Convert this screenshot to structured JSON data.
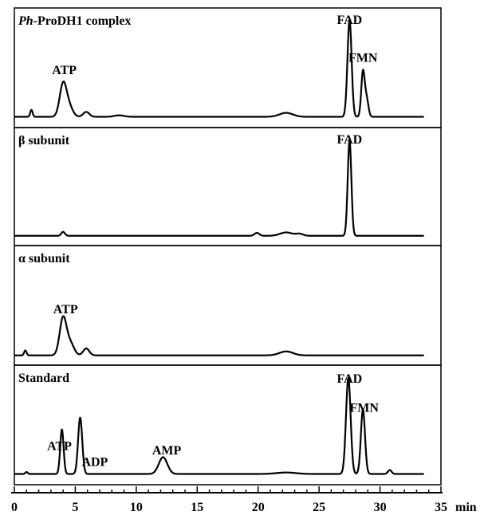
{
  "chart_data": {
    "type": "line",
    "x_unit": "min",
    "xlim": [
      0,
      35
    ],
    "x_ticks": [
      "0",
      "5",
      "10",
      "15",
      "20",
      "25",
      "30",
      "35"
    ],
    "x_axis_label": "min",
    "grid": false,
    "panels": [
      {
        "title_italic": "Ph",
        "title_rest": "-ProDH1 complex",
        "peak_labels": [
          {
            "text": "ATP",
            "x": 4.1
          },
          {
            "text": "FAD",
            "x": 27.5
          },
          {
            "text": "FMN",
            "x": 28.6
          }
        ],
        "baseline": 0.02,
        "peaks": [
          {
            "x": 1.4,
            "h": 0.07,
            "w": 0.1
          },
          {
            "x": 4.0,
            "h": 0.33,
            "w": 0.28
          },
          {
            "x": 4.5,
            "h": 0.1,
            "w": 0.3
          },
          {
            "x": 5.9,
            "h": 0.05,
            "w": 0.25
          },
          {
            "x": 8.6,
            "h": 0.015,
            "w": 0.4
          },
          {
            "x": 22.3,
            "h": 0.04,
            "w": 0.55
          },
          {
            "x": 27.5,
            "h": 0.98,
            "w": 0.17
          },
          {
            "x": 28.6,
            "h": 0.45,
            "w": 0.14
          },
          {
            "x": 28.9,
            "h": 0.18,
            "w": 0.15
          }
        ]
      },
      {
        "title_italic": "",
        "title_rest": "β  subunit",
        "peak_labels": [
          {
            "text": "FAD",
            "x": 27.5
          }
        ],
        "baseline": 0.01,
        "peaks": [
          {
            "x": 4.0,
            "h": 0.04,
            "w": 0.15
          },
          {
            "x": 19.9,
            "h": 0.03,
            "w": 0.2
          },
          {
            "x": 22.3,
            "h": 0.035,
            "w": 0.5
          },
          {
            "x": 23.4,
            "h": 0.02,
            "w": 0.3
          },
          {
            "x": 27.5,
            "h": 0.98,
            "w": 0.15
          }
        ]
      },
      {
        "title_italic": "",
        "title_rest": "α  subunit",
        "peak_labels": [
          {
            "text": "ATP",
            "x": 4.2
          }
        ],
        "baseline": 0.01,
        "peaks": [
          {
            "x": 0.9,
            "h": 0.05,
            "w": 0.1
          },
          {
            "x": 4.0,
            "h": 0.38,
            "w": 0.28
          },
          {
            "x": 4.6,
            "h": 0.12,
            "w": 0.3
          },
          {
            "x": 5.9,
            "h": 0.07,
            "w": 0.25
          },
          {
            "x": 22.3,
            "h": 0.04,
            "w": 0.55
          }
        ]
      },
      {
        "title_italic": "",
        "title_rest": "Standard",
        "peak_labels": [
          {
            "text": "ATP",
            "x": 3.7
          },
          {
            "text": "ADP",
            "x": 6.6
          },
          {
            "text": "AMP",
            "x": 12.5
          },
          {
            "text": "FAD",
            "x": 27.5
          },
          {
            "text": "FMN",
            "x": 28.7
          }
        ],
        "baseline": 0.02,
        "peaks": [
          {
            "x": 1.0,
            "h": 0.02,
            "w": 0.1
          },
          {
            "x": 3.9,
            "h": 0.45,
            "w": 0.14
          },
          {
            "x": 5.4,
            "h": 0.57,
            "w": 0.17
          },
          {
            "x": 12.2,
            "h": 0.17,
            "w": 0.35
          },
          {
            "x": 22.3,
            "h": 0.015,
            "w": 0.8
          },
          {
            "x": 27.4,
            "h": 0.97,
            "w": 0.19
          },
          {
            "x": 28.6,
            "h": 0.65,
            "w": 0.17
          },
          {
            "x": 30.8,
            "h": 0.04,
            "w": 0.15
          }
        ]
      }
    ]
  }
}
